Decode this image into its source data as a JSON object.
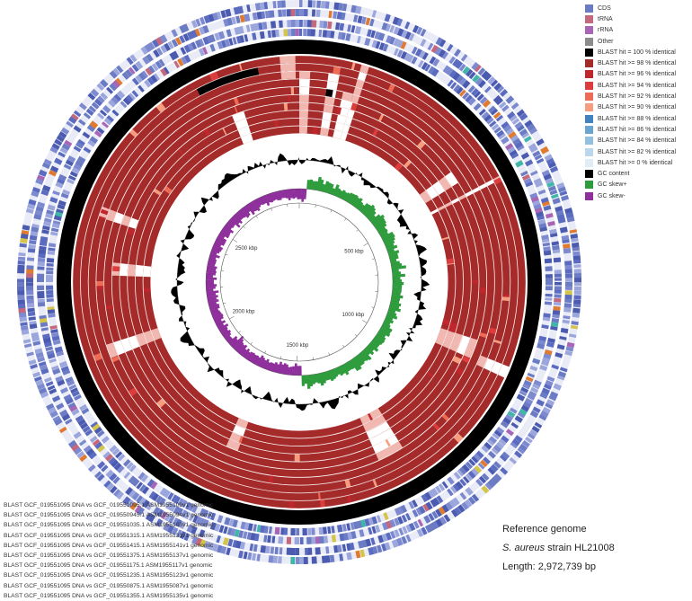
{
  "legend": [
    {
      "label": "CDS",
      "color": "#6b7bc4"
    },
    {
      "label": "tRNA",
      "color": "#c4687e"
    },
    {
      "label": "rRNA",
      "color": "#a865b5"
    },
    {
      "label": "Other",
      "color": "#8c8c8c"
    },
    {
      "label": "BLAST hit = 100 % identical",
      "color": "#000000"
    },
    {
      "label": "BLAST hit >= 98 % identical",
      "color": "#a52a2a"
    },
    {
      "label": "BLAST hit >= 96 % identical",
      "color": "#c0272d"
    },
    {
      "label": "BLAST hit >= 94 % identical",
      "color": "#dc3c3c"
    },
    {
      "label": "BLAST hit >= 92 % identical",
      "color": "#ee6b55"
    },
    {
      "label": "BLAST hit >= 90 % identical",
      "color": "#f59d7e"
    },
    {
      "label": "BLAST hit >= 88 % identical",
      "color": "#3f84c0"
    },
    {
      "label": "BLAST hit >= 86 % identical",
      "color": "#6aa5d2"
    },
    {
      "label": "BLAST hit >= 84 % identical",
      "color": "#94c0e0"
    },
    {
      "label": "BLAST hit >= 82 % identical",
      "color": "#bcd7ec"
    },
    {
      "label": "BLAST hit >= 0 % identical",
      "color": "#e0ecf6"
    },
    {
      "label": "GC content",
      "color": "#000000"
    },
    {
      "label": "GC skew+",
      "color": "#2e9c3c"
    },
    {
      "label": "GC skew-",
      "color": "#8e2f9c"
    }
  ],
  "ring_labels": [
    "BLAST GCF_019551095 DNA vs GCF_019551095.1 ASM1955109v1 genomic",
    "BLAST GCF_019551095 DNA vs GCF_019550945.1 ASM1955094v1 genomic",
    "BLAST GCF_019551095 DNA vs GCF_019551035.1 ASM1955103v1 genomic",
    "BLAST GCF_019551095 DNA vs GCF_019551315.1 ASM1955131v1 genomic",
    "BLAST GCF_019551095 DNA vs GCF_019551415.1 ASM1955141v1 genomic",
    "BLAST GCF_019551095 DNA vs GCF_019551375.1 ASM1955137v1 genomic",
    "BLAST GCF_019551095 DNA vs GCF_019551175.1 ASM1955117v1 genomic",
    "BLAST GCF_019551095 DNA vs GCF_019551235.1 ASM1955123v1 genomic",
    "BLAST GCF_019551095 DNA vs GCF_019550875.1 ASM1955087v1 genomic",
    "BLAST GCF_019551095 DNA vs GCF_019551355.1 ASM1955135v1 genomic"
  ],
  "info": {
    "heading": "Reference genome",
    "species": "S. aureus",
    "strain_suffix": " strain HL21008",
    "length": "Length: 2,972,739 bp"
  },
  "genome": {
    "length_bp": 2972739,
    "scale_labels": [
      "500 kbp",
      "1000 kbp",
      "1500 kbp",
      "2000 kbp",
      "2500 kbp"
    ],
    "scale_values": [
      500000,
      1000000,
      1500000,
      2000000,
      2500000
    ]
  },
  "colors": {
    "blast_main": "#a52a2a",
    "blast_identical": "#000000",
    "feature_cds": "#6b7bc4",
    "gc_content": "#000000",
    "gc_skew_pos": "#2e9c3c",
    "gc_skew_neg": "#8e2f9c"
  }
}
